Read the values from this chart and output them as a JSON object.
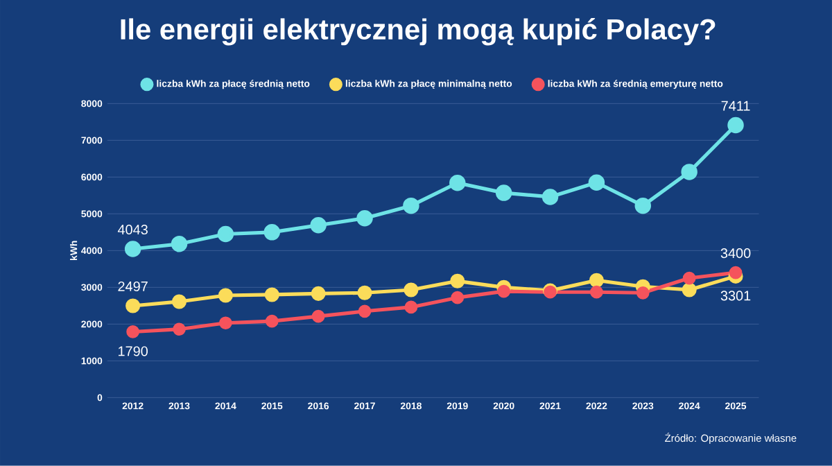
{
  "chart_data": {
    "type": "line",
    "title": "Ile energii elektrycznej mogą kupić Polacy?",
    "ylabel": "kWh",
    "categories": [
      "2012",
      "2013",
      "2014",
      "2015",
      "2016",
      "2017",
      "2018",
      "2019",
      "2020",
      "2021",
      "2022",
      "2023",
      "2024",
      "2025"
    ],
    "series": [
      {
        "name": "liczba kWh za płacę średnią netto",
        "color": "#6ee3e6",
        "values": [
          4043,
          4180,
          4450,
          4500,
          4690,
          4880,
          5220,
          5840,
          5570,
          5460,
          5850,
          5220,
          6140,
          7411
        ],
        "value_labels": [
          "4043",
          null,
          null,
          null,
          null,
          null,
          null,
          null,
          null,
          null,
          null,
          null,
          null,
          "7411"
        ]
      },
      {
        "name": "liczba kWh za płacę minimalną netto",
        "color": "#fbdc5a",
        "values": [
          2497,
          2610,
          2780,
          2800,
          2830,
          2850,
          2930,
          3170,
          3000,
          2910,
          3190,
          3020,
          2930,
          3301
        ],
        "value_labels": [
          "2497",
          null,
          null,
          null,
          null,
          null,
          null,
          null,
          null,
          null,
          null,
          null,
          null,
          "3301"
        ]
      },
      {
        "name": "liczba kWh za średnią emeryturę netto",
        "color": "#f5535c",
        "values": [
          1790,
          1860,
          2030,
          2080,
          2210,
          2350,
          2460,
          2720,
          2890,
          2870,
          2870,
          2850,
          3250,
          3400
        ],
        "value_labels": [
          "1790",
          null,
          null,
          null,
          null,
          null,
          null,
          null,
          null,
          null,
          null,
          null,
          null,
          "3400"
        ]
      }
    ],
    "ylim": [
      0,
      8000
    ],
    "yticks": [
      0,
      1000,
      2000,
      3000,
      4000,
      5000,
      6000,
      7000,
      8000
    ],
    "grid": "y",
    "legend": "top",
    "marker": "circle",
    "line_style": "solid",
    "annotations": [
      "Źródło: Opracowanie własne"
    ]
  }
}
